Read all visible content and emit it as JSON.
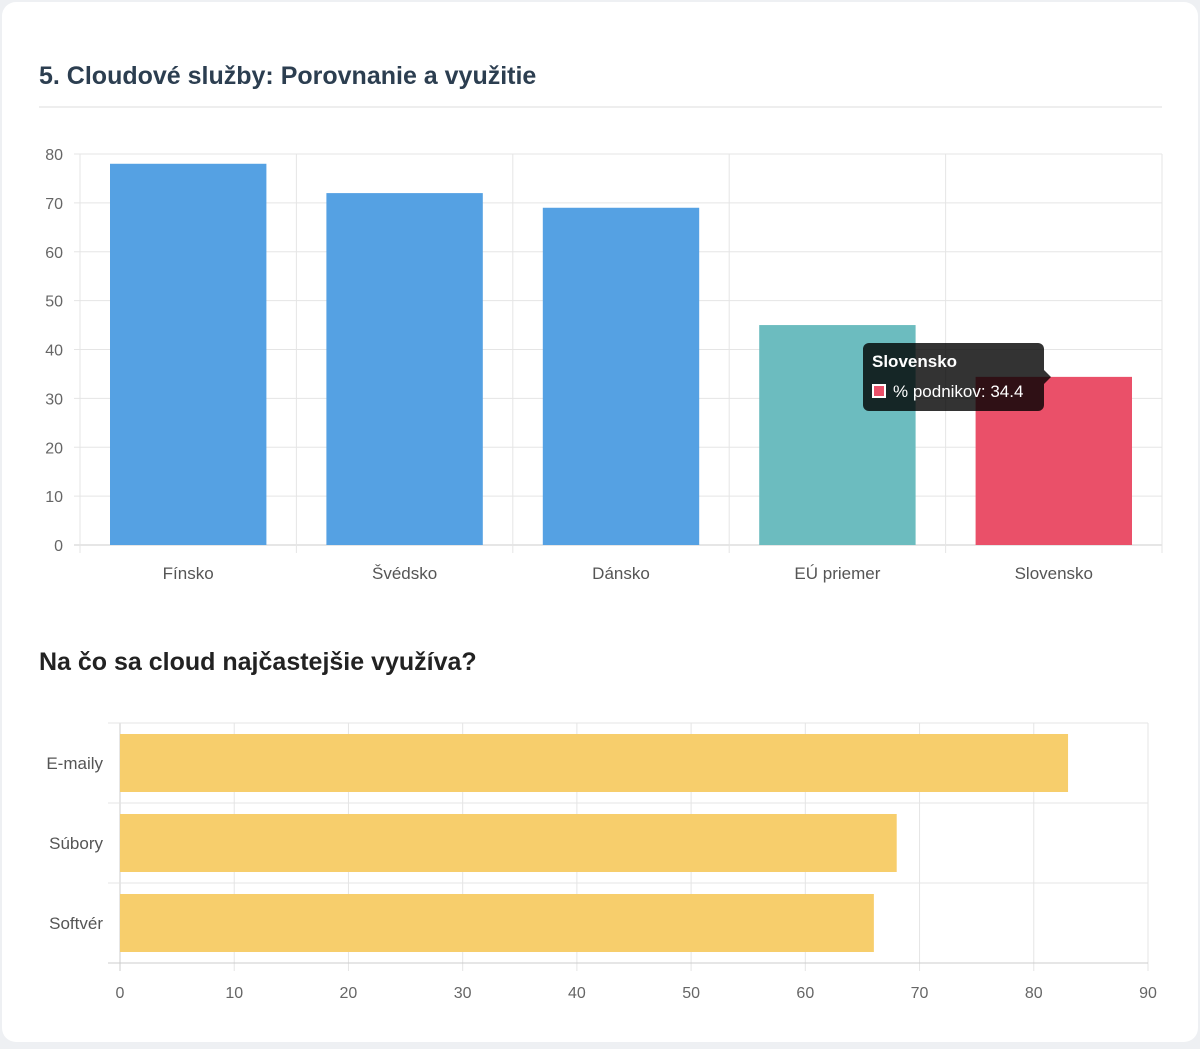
{
  "chart_data": [
    {
      "type": "bar",
      "title": "5. Cloudové služby: Porovnanie a využitie",
      "categories": [
        "Fínsko",
        "Švédsko",
        "Dánsko",
        "EÚ priemer",
        "Slovensko"
      ],
      "series": [
        {
          "name": "% podnikov",
          "values": [
            78,
            72,
            69,
            45,
            34.4
          ]
        }
      ],
      "colors": [
        "#55a1e3",
        "#55a1e3",
        "#55a1e3",
        "#6cbcbf",
        "#ea5069"
      ],
      "ylim": [
        0,
        80
      ],
      "yticks": [
        0,
        10,
        20,
        30,
        40,
        50,
        60,
        70,
        80
      ],
      "grid": true,
      "tooltip": {
        "title": "Slovensko",
        "label": "% podnikov: 34.4"
      }
    },
    {
      "type": "bar",
      "orientation": "horizontal",
      "title": "Na čo sa cloud najčastejšie využíva?",
      "categories": [
        "E-maily",
        "Súbory",
        "Softvér"
      ],
      "values": [
        83,
        68,
        66
      ],
      "color": "#f7ce6c",
      "xlim": [
        0,
        90
      ],
      "xticks": [
        0,
        10,
        20,
        30,
        40,
        50,
        60,
        70,
        80,
        90
      ],
      "grid": true
    }
  ]
}
